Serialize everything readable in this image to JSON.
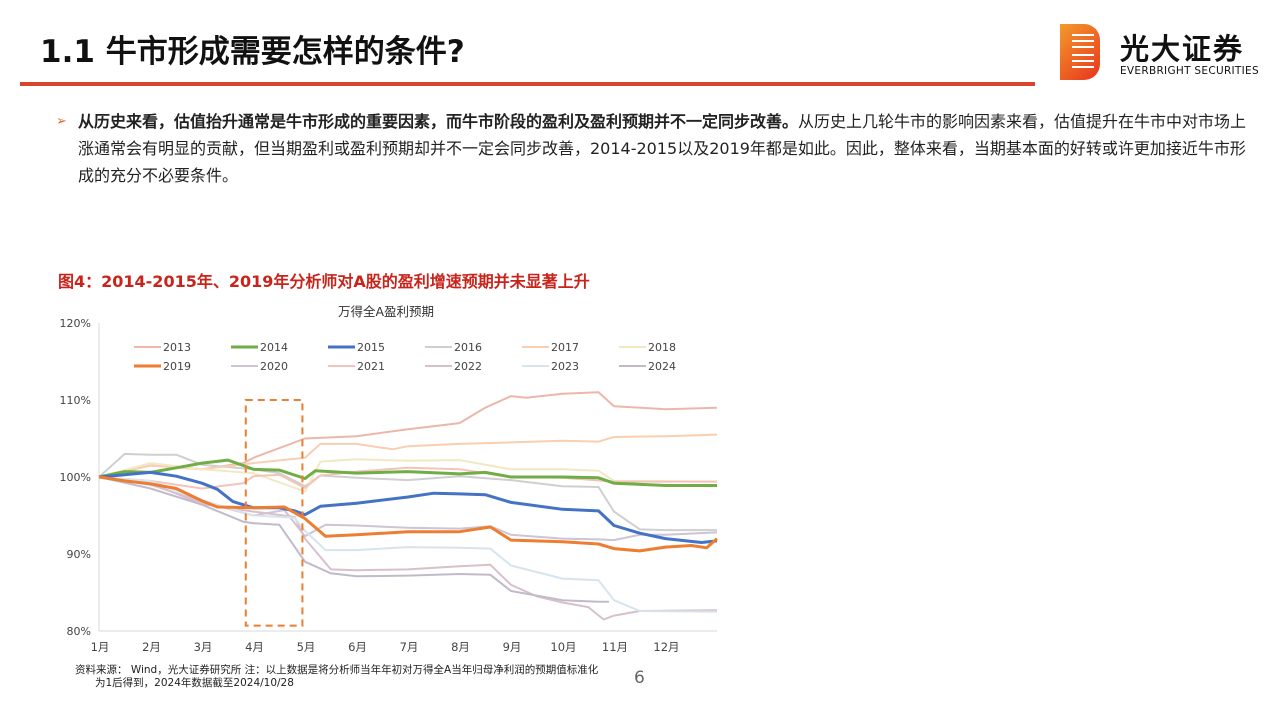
{
  "header": {
    "title": "1.1 牛市形成需要怎样的条件?",
    "logo_cn": "光大证券",
    "logo_en": "EVERBRIGHT SECURITIES",
    "accent_color": "#d8442c"
  },
  "body": {
    "bullet_bold": "从历史来看，估值抬升通常是牛市形成的重要因素，而牛市阶段的盈利及盈利预期并不一定同步改善。",
    "bullet_text": "从历史上几轮牛市的影响因素来看，估值提升在牛市中对市场上涨通常会有明显的贡献，但当期盈利或盈利预期却并不一定会同步改善，2014-2015以及2019年都是如此。因此，整体来看，当期基本面的好转或许更加接近牛市形成的充分不必要条件。"
  },
  "figure": {
    "title": "图4：2014-2015年、2019年分析师对A股的盈利增速预期并未显著上升",
    "source": "资料来源： Wind，光大证券研究所        注：以上数据是将分析师当年年初对万得全A当年归母净利润的预期值标准化",
    "source_line2": "为1后得到，2024年数据截至2024/10/28"
  },
  "page_number": "6",
  "chart_data": {
    "type": "line",
    "title": "万得全A盈利预期",
    "xlabel": "",
    "ylabel": "",
    "x_ticks": [
      "1月",
      "2月",
      "3月",
      "4月",
      "5月",
      "6月",
      "7月",
      "8月",
      "9月",
      "10月",
      "11月",
      "12月"
    ],
    "x_range": [
      1,
      13
    ],
    "ylim": [
      80,
      120
    ],
    "y_ticks": [
      "80%",
      "90%",
      "100%",
      "110%",
      "120%"
    ],
    "y_tick_values": [
      80,
      90,
      100,
      110,
      120
    ],
    "grid": false,
    "legend_position": "top",
    "highlight_box": {
      "x": [
        3.85,
        4.95
      ],
      "y": [
        80.7,
        110
      ],
      "color": "#ed7d31",
      "style": "dashed"
    },
    "series": [
      {
        "name": "2013",
        "color": "#ebb7aa",
        "width": 2,
        "points": [
          [
            1,
            100
          ],
          [
            2,
            101.5
          ],
          [
            3,
            101
          ],
          [
            3.8,
            101.8
          ],
          [
            4,
            102.5
          ],
          [
            5,
            105
          ],
          [
            6,
            105.3
          ],
          [
            7,
            106.2
          ],
          [
            8,
            107
          ],
          [
            8.5,
            109
          ],
          [
            9,
            110.5
          ],
          [
            9.3,
            110.3
          ],
          [
            10,
            110.8
          ],
          [
            10.7,
            111
          ],
          [
            11,
            109.2
          ],
          [
            12,
            108.8
          ],
          [
            13,
            109
          ]
        ]
      },
      {
        "name": "2014",
        "color": "#70ad47",
        "width": 3,
        "points": [
          [
            1,
            100
          ],
          [
            1.5,
            100.7
          ],
          [
            2,
            100.6
          ],
          [
            2.5,
            101.2
          ],
          [
            3,
            101.8
          ],
          [
            3.5,
            102.2
          ],
          [
            3.8,
            101.5
          ],
          [
            4,
            101
          ],
          [
            4.5,
            100.9
          ],
          [
            5,
            99.8
          ],
          [
            5.2,
            100.8
          ],
          [
            6,
            100.5
          ],
          [
            7,
            100.7
          ],
          [
            8,
            100.4
          ],
          [
            8.5,
            100.6
          ],
          [
            9,
            100
          ],
          [
            10,
            100
          ],
          [
            10.7,
            99.9
          ],
          [
            11,
            99.2
          ],
          [
            12,
            98.9
          ],
          [
            13,
            98.9
          ]
        ]
      },
      {
        "name": "2015",
        "color": "#4472c4",
        "width": 3,
        "points": [
          [
            1,
            100
          ],
          [
            1.5,
            100.3
          ],
          [
            2,
            100.6
          ],
          [
            2.5,
            100.1
          ],
          [
            3,
            99.2
          ],
          [
            3.3,
            98.4
          ],
          [
            3.6,
            96.8
          ],
          [
            4,
            96
          ],
          [
            4.5,
            96
          ],
          [
            4.8,
            95.6
          ],
          [
            5,
            95.1
          ],
          [
            5.3,
            96.2
          ],
          [
            6,
            96.6
          ],
          [
            7,
            97.4
          ],
          [
            7.5,
            97.9
          ],
          [
            8,
            97.8
          ],
          [
            8.5,
            97.7
          ],
          [
            9,
            96.7
          ],
          [
            10,
            95.8
          ],
          [
            10.7,
            95.6
          ],
          [
            11,
            93.7
          ],
          [
            11.5,
            92.7
          ],
          [
            12,
            92
          ],
          [
            12.7,
            91.5
          ],
          [
            13,
            91.7
          ]
        ]
      },
      {
        "name": "2016",
        "color": "#cfcfcf",
        "width": 2,
        "points": [
          [
            1,
            100
          ],
          [
            1.5,
            103
          ],
          [
            2,
            102.9
          ],
          [
            2.5,
            102.9
          ],
          [
            3,
            101.6
          ],
          [
            4,
            101
          ],
          [
            4.5,
            100.5
          ],
          [
            5,
            98.8
          ],
          [
            5.3,
            100.2
          ],
          [
            6,
            99.9
          ],
          [
            7,
            99.6
          ],
          [
            8,
            100.1
          ],
          [
            9,
            99.6
          ],
          [
            10,
            98.8
          ],
          [
            10.7,
            98.7
          ],
          [
            11,
            95.5
          ],
          [
            11.5,
            93.2
          ],
          [
            12,
            93.1
          ],
          [
            13,
            93.1
          ]
        ]
      },
      {
        "name": "2017",
        "color": "#f8cfb3",
        "width": 2,
        "points": [
          [
            1,
            100
          ],
          [
            2,
            101.5
          ],
          [
            3,
            101
          ],
          [
            4,
            101.8
          ],
          [
            5,
            102.5
          ],
          [
            5.3,
            104.3
          ],
          [
            6,
            104.3
          ],
          [
            6.7,
            103.6
          ],
          [
            7,
            104
          ],
          [
            8,
            104.3
          ],
          [
            9,
            104.5
          ],
          [
            10,
            104.7
          ],
          [
            10.7,
            104.6
          ],
          [
            11,
            105.2
          ],
          [
            12,
            105.3
          ],
          [
            13,
            105.5
          ]
        ]
      },
      {
        "name": "2018",
        "color": "#f2e9c4",
        "width": 2,
        "points": [
          [
            1,
            100
          ],
          [
            2,
            101.8
          ],
          [
            3,
            101
          ],
          [
            4,
            100.5
          ],
          [
            5,
            98.1
          ],
          [
            5.3,
            102
          ],
          [
            6,
            102.3
          ],
          [
            7,
            102.1
          ],
          [
            8,
            102.2
          ],
          [
            9,
            101
          ],
          [
            10,
            101
          ],
          [
            10.7,
            100.8
          ],
          [
            11,
            99.5
          ],
          [
            13,
            99.4
          ]
        ]
      },
      {
        "name": "2019",
        "color": "#ed7d31",
        "width": 3,
        "points": [
          [
            1,
            100
          ],
          [
            1.5,
            99.5
          ],
          [
            2,
            99.1
          ],
          [
            2.5,
            98.5
          ],
          [
            3,
            96.9
          ],
          [
            3.3,
            96.1
          ],
          [
            4,
            96
          ],
          [
            4.6,
            96.1
          ],
          [
            5,
            94.6
          ],
          [
            5.4,
            92.3
          ],
          [
            6,
            92.5
          ],
          [
            7,
            92.9
          ],
          [
            8,
            92.9
          ],
          [
            8.6,
            93.5
          ],
          [
            9,
            91.8
          ],
          [
            10,
            91.6
          ],
          [
            10.7,
            91.3
          ],
          [
            11,
            90.7
          ],
          [
            11.5,
            90.4
          ],
          [
            12,
            90.9
          ],
          [
            12.5,
            91.1
          ],
          [
            12.8,
            90.8
          ],
          [
            13,
            92
          ]
        ]
      },
      {
        "name": "2020",
        "color": "#cdc4d6",
        "width": 2,
        "points": [
          [
            1,
            100
          ],
          [
            2,
            99
          ],
          [
            3,
            96.8
          ],
          [
            4,
            95
          ],
          [
            4.6,
            95.7
          ],
          [
            5,
            92.3
          ],
          [
            5.4,
            93.8
          ],
          [
            6,
            93.7
          ],
          [
            7,
            93.4
          ],
          [
            8,
            93.3
          ],
          [
            8.6,
            93.6
          ],
          [
            9,
            92.5
          ],
          [
            10,
            92
          ],
          [
            10.7,
            91.9
          ],
          [
            11,
            91.8
          ],
          [
            11.5,
            92.5
          ],
          [
            12,
            92.5
          ],
          [
            13,
            92.8
          ]
        ]
      },
      {
        "name": "2021",
        "color": "#f2c4bb",
        "width": 2,
        "points": [
          [
            1,
            100
          ],
          [
            2,
            99.5
          ],
          [
            3,
            98.5
          ],
          [
            3.8,
            99.2
          ],
          [
            4,
            100.1
          ],
          [
            4.5,
            100.3
          ],
          [
            5,
            98.6
          ],
          [
            5.3,
            100.2
          ],
          [
            6,
            100.7
          ],
          [
            7,
            101.2
          ],
          [
            8,
            101
          ],
          [
            9,
            100
          ],
          [
            10,
            99.9
          ],
          [
            11,
            99.4
          ],
          [
            13,
            99.4
          ]
        ]
      },
      {
        "name": "2022",
        "color": "#d8bfcc",
        "width": 2,
        "points": [
          [
            1,
            100
          ],
          [
            2,
            99.2
          ],
          [
            3,
            96.5
          ],
          [
            4,
            95.5
          ],
          [
            4.8,
            94.8
          ],
          [
            5,
            92
          ],
          [
            5.5,
            88
          ],
          [
            6,
            87.9
          ],
          [
            7,
            88
          ],
          [
            8,
            88.4
          ],
          [
            8.6,
            88.6
          ],
          [
            9,
            86
          ],
          [
            9.5,
            84.5
          ],
          [
            10,
            83.7
          ],
          [
            10.5,
            83.1
          ],
          [
            10.8,
            81.5
          ],
          [
            11,
            82
          ],
          [
            11.5,
            82.6
          ],
          [
            13,
            82.7
          ]
        ]
      },
      {
        "name": "2023",
        "color": "#d6e4ee",
        "width": 2,
        "points": [
          [
            1,
            100
          ],
          [
            2,
            99.5
          ],
          [
            3,
            97
          ],
          [
            4,
            95
          ],
          [
            4.8,
            94.7
          ],
          [
            5,
            93
          ],
          [
            5.4,
            90.5
          ],
          [
            6,
            90.5
          ],
          [
            7,
            90.9
          ],
          [
            8,
            90.8
          ],
          [
            8.6,
            90.7
          ],
          [
            9,
            88.5
          ],
          [
            10,
            86.8
          ],
          [
            10.7,
            86.6
          ],
          [
            11,
            84
          ],
          [
            11.5,
            82.6
          ],
          [
            13,
            82.5
          ]
        ]
      },
      {
        "name": "2024",
        "color": "#c2bacb",
        "width": 2,
        "points": [
          [
            1,
            100
          ],
          [
            2,
            98.5
          ],
          [
            3,
            96.4
          ],
          [
            3.8,
            94.2
          ],
          [
            4,
            94
          ],
          [
            4.5,
            93.8
          ],
          [
            5,
            89
          ],
          [
            5.5,
            87.5
          ],
          [
            6,
            87.1
          ],
          [
            7,
            87.2
          ],
          [
            8,
            87.4
          ],
          [
            8.6,
            87.3
          ],
          [
            9,
            85.2
          ],
          [
            10,
            84
          ],
          [
            10.7,
            83.8
          ],
          [
            10.9,
            83.8
          ]
        ]
      }
    ]
  }
}
